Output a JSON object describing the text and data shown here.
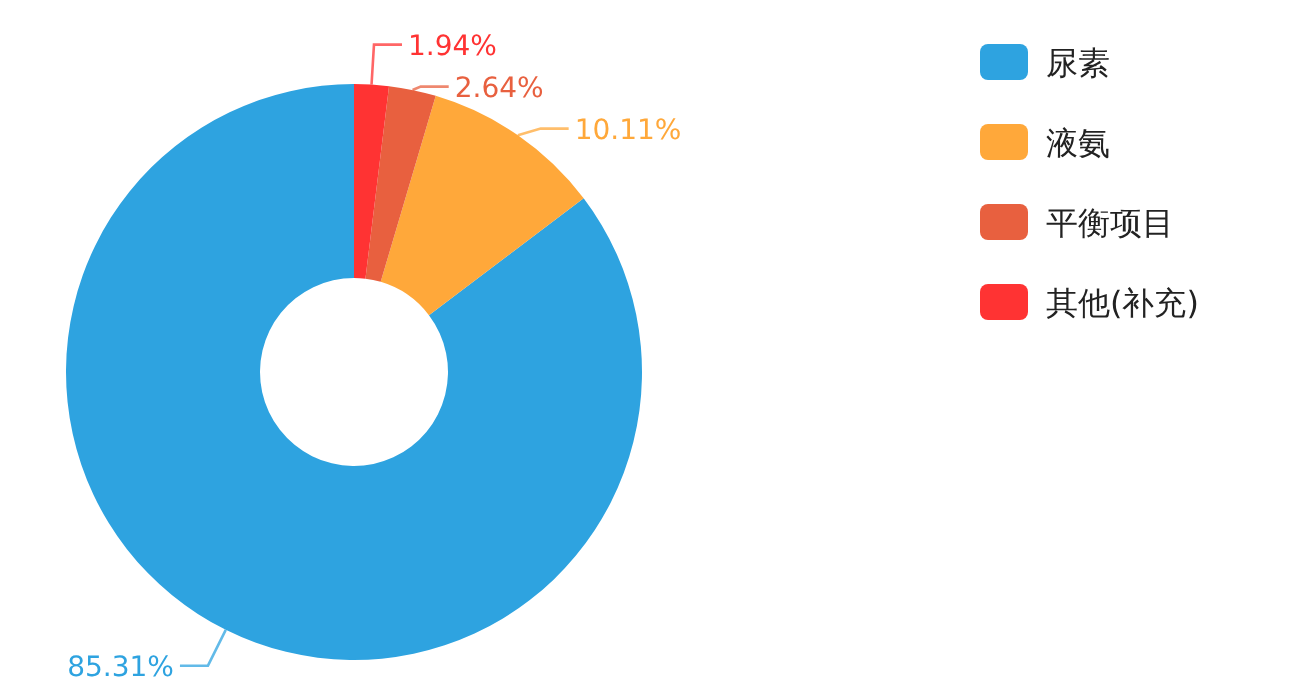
{
  "chart_data": {
    "type": "donut",
    "categories": [
      "尿素",
      "液氨",
      "平衡项目",
      "其他(补充)"
    ],
    "values": [
      85.31,
      10.11,
      2.64,
      1.94
    ],
    "colors": [
      "#2ea3e0",
      "#ffa83a",
      "#e8603f",
      "#ff3333"
    ],
    "value_labels": [
      "85.31%",
      "10.11%",
      "2.64%",
      "1.94%"
    ],
    "legend": "top right"
  }
}
